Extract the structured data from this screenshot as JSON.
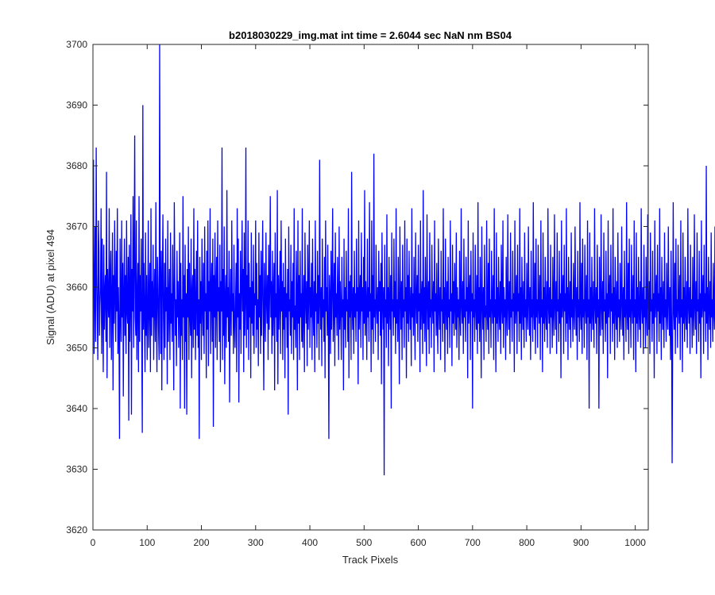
{
  "chart_data": {
    "type": "line",
    "title": "b2018030229_img.mat int time = 2.6044 sec  NaN nm BS04",
    "xlabel": "Track Pixels",
    "ylabel": "Signal (ADU) at pixel 494",
    "xlim": [
      0,
      1024
    ],
    "ylim": [
      3620,
      3700
    ],
    "x_ticks": [
      "0",
      "100",
      "200",
      "300",
      "400",
      "500",
      "600",
      "700",
      "800",
      "900",
      "1000"
    ],
    "y_ticks": [
      "3620",
      "3630",
      "3640",
      "3650",
      "3660",
      "3670",
      "3680",
      "3690",
      "3700"
    ],
    "grid": false,
    "line_color": "#0000ff",
    "series": [
      {
        "x_start": 1,
        "x_step": 1,
        "values": [
          3681,
          3649,
          3658,
          3670,
          3651,
          3683,
          3662,
          3655,
          3648,
          3671,
          3666,
          3652,
          3657,
          3660,
          3673,
          3649,
          3668,
          3656,
          3646,
          3667,
          3653,
          3659,
          3662,
          3651,
          3679,
          3645,
          3663,
          3658,
          3655,
          3673,
          3650,
          3661,
          3666,
          3648,
          3657,
          3669,
          3643,
          3662,
          3654,
          3671,
          3658,
          3651,
          3666,
          3656,
          3673,
          3649,
          3660,
          3653,
          3635,
          3668,
          3657,
          3651,
          3671,
          3655,
          3664,
          3642,
          3659,
          3668,
          3652,
          3662,
          3649,
          3671,
          3656,
          3654,
          3665,
          3638,
          3667,
          3651,
          3658,
          3672,
          3639,
          3663,
          3656,
          3675,
          3650,
          3664,
          3685,
          3655,
          3652,
          3671,
          3648,
          3658,
          3664,
          3646,
          3675,
          3651,
          3662,
          3656,
          3668,
          3650,
          3636,
          3690,
          3653,
          3664,
          3655,
          3646,
          3669,
          3652,
          3662,
          3648,
          3656,
          3671,
          3650,
          3658,
          3664,
          3646,
          3673,
          3652,
          3661,
          3655,
          3667,
          3648,
          3658,
          3663,
          3651,
          3674,
          3656,
          3646,
          3665,
          3660,
          3653,
          3648,
          3700,
          3660,
          3649,
          3666,
          3643,
          3661,
          3672,
          3655,
          3648,
          3664,
          3650,
          3668,
          3656,
          3660,
          3644,
          3671,
          3651,
          3657,
          3663,
          3648,
          3669,
          3654,
          3659,
          3651,
          3667,
          3656,
          3643,
          3674,
          3662,
          3652,
          3658,
          3647,
          3666,
          3655,
          3661,
          3650,
          3657,
          3669,
          3640,
          3664,
          3652,
          3658,
          3648,
          3675,
          3655,
          3662,
          3640,
          3667,
          3651,
          3659,
          3639,
          3663,
          3655,
          3670,
          3648,
          3664,
          3656,
          3652,
          3668,
          3645,
          3659,
          3662,
          3650,
          3673,
          3653,
          3663,
          3648,
          3658,
          3666,
          3652,
          3671,
          3650,
          3658,
          3635,
          3665,
          3654,
          3661,
          3648,
          3668,
          3657,
          3652,
          3664,
          3649,
          3670,
          3656,
          3659,
          3645,
          3666,
          3653,
          3671,
          3647,
          3661,
          3656,
          3673,
          3649,
          3659,
          3664,
          3651,
          3668,
          3637,
          3662,
          3655,
          3669,
          3650,
          3659,
          3665,
          3648,
          3671,
          3656,
          3660,
          3651,
          3667,
          3646,
          3661,
          3656,
          3683,
          3648,
          3663,
          3652,
          3670,
          3644,
          3658,
          3662,
          3650,
          3676,
          3655,
          3660,
          3651,
          3666,
          3641,
          3657,
          3663,
          3652,
          3671,
          3656,
          3659,
          3649,
          3667,
          3654,
          3650,
          3658,
          3664,
          3646,
          3673,
          3655,
          3668,
          3641,
          3659,
          3653,
          3666,
          3649,
          3660,
          3671,
          3656,
          3663,
          3646,
          3669,
          3652,
          3658,
          3683,
          3650,
          3662,
          3653,
          3671,
          3648,
          3664,
          3655,
          3660,
          3645,
          3669,
          3654,
          3661,
          3652,
          3667,
          3649,
          3659,
          3657,
          3671,
          3650,
          3664,
          3653,
          3658,
          3647,
          3669,
          3655,
          3662,
          3649,
          3666,
          3652,
          3660,
          3671,
          3655,
          3643,
          3664,
          3656,
          3651,
          3669,
          3658,
          3654,
          3662,
          3648,
          3667,
          3653,
          3660,
          3675,
          3655,
          3661,
          3649,
          3666,
          3652,
          3658,
          3664,
          3643,
          3669,
          3655,
          3659,
          3651,
          3676,
          3644,
          3662,
          3653,
          3658,
          3666,
          3649,
          3671,
          3656,
          3661,
          3648,
          3664,
          3653,
          3660,
          3645,
          3668,
          3655,
          3659,
          3650,
          3663,
          3639,
          3670,
          3656,
          3658,
          3652,
          3667,
          3649,
          3661,
          3655,
          3664,
          3648,
          3673,
          3653,
          3657,
          3650,
          3666,
          3658,
          3643,
          3671,
          3654,
          3662,
          3648,
          3666,
          3655,
          3659,
          3651,
          3673,
          3650,
          3656,
          3662,
          3646,
          3669,
          3658,
          3654,
          3661,
          3647,
          3667,
          3653,
          3659,
          3671,
          3650,
          3660,
          3655,
          3664,
          3648,
          3668,
          3657,
          3652,
          3661,
          3646,
          3671,
          3656,
          3659,
          3650,
          3666,
          3654,
          3662,
          3648,
          3681,
          3658,
          3653,
          3660,
          3647,
          3668,
          3655,
          3658,
          3651,
          3665,
          3645,
          3671,
          3656,
          3660,
          3652,
          3667,
          3654,
          3635,
          3662,
          3658,
          3649,
          3666,
          3653,
          3660,
          3673,
          3651,
          3657,
          3664,
          3647,
          3669,
          3655,
          3659,
          3652,
          3665,
          3658,
          3648,
          3670,
          3653,
          3661,
          3656,
          3648,
          3665,
          3655,
          3658,
          3643,
          3668,
          3653,
          3660,
          3650,
          3666,
          3656,
          3658,
          3651,
          3673,
          3645,
          3661,
          3655,
          3662,
          3648,
          3679,
          3657,
          3653,
          3660,
          3649,
          3666,
          3655,
          3659,
          3651,
          3668,
          3656,
          3660,
          3644,
          3671,
          3653,
          3658,
          3662,
          3650,
          3669,
          3656,
          3660,
          3648,
          3665,
          3654,
          3676,
          3652,
          3661,
          3657,
          3648,
          3668,
          3655,
          3660,
          3651,
          3674,
          3656,
          3659,
          3646,
          3671,
          3653,
          3662,
          3649,
          3682,
          3655,
          3658,
          3651,
          3667,
          3657,
          3654,
          3660,
          3648,
          3666,
          3656,
          3661,
          3652,
          3664,
          3644,
          3669,
          3658,
          3653,
          3660,
          3629,
          3667,
          3655,
          3658,
          3650,
          3672,
          3654,
          3660,
          3647,
          3665,
          3657,
          3653,
          3662,
          3640,
          3669,
          3656,
          3658,
          3652,
          3668,
          3655,
          3661,
          3649,
          3673,
          3654,
          3658,
          3651,
          3665,
          3656,
          3644,
          3670,
          3659,
          3653,
          3661,
          3648,
          3667,
          3655,
          3658,
          3650,
          3671,
          3656,
          3660,
          3645,
          3668,
          3654,
          3662,
          3651,
          3666,
          3657,
          3653,
          3660,
          3647,
          3673,
          3655,
          3659,
          3652,
          3665,
          3656,
          3648,
          3669,
          3658,
          3654,
          3662,
          3651,
          3667,
          3656,
          3659,
          3646,
          3671,
          3653,
          3658,
          3661,
          3649,
          3676,
          3654,
          3660,
          3651,
          3665,
          3656,
          3647,
          3672,
          3658,
          3653,
          3661,
          3649,
          3669,
          3655,
          3658,
          3650,
          3667,
          3657,
          3654,
          3661,
          3646,
          3671,
          3656,
          3659,
          3652,
          3664,
          3654,
          3649,
          3668,
          3657,
          3653,
          3660,
          3648,
          3666,
          3656,
          3658,
          3651,
          3673,
          3654,
          3660,
          3646,
          3668,
          3657,
          3653,
          3661,
          3649,
          3665,
          3655,
          3658,
          3650,
          3671,
          3656,
          3659,
          3647,
          3667,
          3654,
          3661,
          3652,
          3664,
          3657,
          3653,
          3669,
          3650,
          3660,
          3655,
          3658,
          3648,
          3666,
          3656,
          3652,
          3673,
          3657,
          3654,
          3661,
          3649,
          3668,
          3655,
          3658,
          3651,
          3665,
          3656,
          3660,
          3645,
          3671,
          3654,
          3658,
          3662,
          3648,
          3666,
          3656,
          3659,
          3640,
          3669,
          3655,
          3658,
          3651,
          3667,
          3657,
          3653,
          3662,
          3649,
          3674,
          3654,
          3660,
          3651,
          3665,
          3656,
          3645,
          3670,
          3658,
          3653,
          3660,
          3648,
          3667,
          3655,
          3657,
          3651,
          3671,
          3656,
          3653,
          3664,
          3649,
          3668,
          3655,
          3658,
          3650,
          3666,
          3657,
          3654,
          3662,
          3648,
          3673,
          3655,
          3658,
          3646,
          3669,
          3654,
          3660,
          3651,
          3665,
          3656,
          3653,
          3661,
          3649,
          3667,
          3657,
          3654,
          3671,
          3650,
          3660,
          3655,
          3658,
          3648,
          3665,
          3656,
          3652,
          3672,
          3657,
          3653,
          3661,
          3649,
          3669,
          3655,
          3658,
          3651,
          3666,
          3656,
          3659,
          3646,
          3671,
          3654,
          3657,
          3662,
          3649,
          3667,
          3656,
          3659,
          3651,
          3673,
          3654,
          3660,
          3648,
          3665,
          3657,
          3653,
          3661,
          3650,
          3669,
          3655,
          3658,
          3651,
          3664,
          3656,
          3653,
          3670,
          3658,
          3652,
          3660,
          3648,
          3666,
          3655,
          3658,
          3651,
          3674,
          3656,
          3653,
          3664,
          3649,
          3668,
          3655,
          3658,
          3650,
          3667,
          3657,
          3654,
          3662,
          3648,
          3671,
          3655,
          3658,
          3646,
          3669,
          3654,
          3660,
          3651,
          3665,
          3656,
          3653,
          3661,
          3650,
          3673,
          3657,
          3654,
          3660,
          3649,
          3667,
          3655,
          3658,
          3650,
          3665,
          3656,
          3652,
          3672,
          3657,
          3653,
          3661,
          3649,
          3669,
          3656,
          3658,
          3651,
          3666,
          3654,
          3659,
          3645,
          3671,
          3655,
          3658,
          3662,
          3649,
          3667,
          3656,
          3659,
          3651,
          3673,
          3654,
          3660,
          3648,
          3665,
          3657,
          3653,
          3661,
          3650,
          3669,
          3655,
          3658,
          3651,
          3664,
          3656,
          3653,
          3670,
          3658,
          3652,
          3660,
          3648,
          3666,
          3655,
          3658,
          3651,
          3674,
          3656,
          3653,
          3664,
          3649,
          3668,
          3655,
          3658,
          3650,
          3667,
          3657,
          3654,
          3662,
          3648,
          3671,
          3655,
          3658,
          3640,
          3669,
          3654,
          3660,
          3651,
          3665,
          3656,
          3653,
          3661,
          3650,
          3673,
          3657,
          3654,
          3660,
          3649,
          3667,
          3655,
          3658,
          3640,
          3665,
          3656,
          3652,
          3672,
          3657,
          3653,
          3661,
          3649,
          3669,
          3656,
          3658,
          3651,
          3666,
          3654,
          3659,
          3645,
          3671,
          3655,
          3658,
          3662,
          3649,
          3667,
          3656,
          3659,
          3651,
          3673,
          3654,
          3660,
          3648,
          3665,
          3657,
          3653,
          3661,
          3650,
          3669,
          3655,
          3658,
          3651,
          3664,
          3656,
          3653,
          3670,
          3658,
          3652,
          3660,
          3648,
          3666,
          3655,
          3658,
          3651,
          3674,
          3656,
          3653,
          3664,
          3649,
          3668,
          3655,
          3658,
          3650,
          3667,
          3657,
          3654,
          3662,
          3648,
          3671,
          3655,
          3658,
          3646,
          3669,
          3654,
          3660,
          3651,
          3665,
          3656,
          3653,
          3661,
          3650,
          3673,
          3657,
          3654,
          3660,
          3649,
          3667,
          3655,
          3658,
          3650,
          3665,
          3656,
          3652,
          3672,
          3657,
          3653,
          3661,
          3649,
          3669,
          3656,
          3658,
          3651,
          3666,
          3654,
          3659,
          3645,
          3671,
          3655,
          3658,
          3662,
          3649,
          3667,
          3656,
          3659,
          3651,
          3673,
          3654,
          3660,
          3648,
          3665,
          3657,
          3653,
          3661,
          3650,
          3669,
          3655,
          3658,
          3651,
          3664,
          3656,
          3653,
          3670,
          3658,
          3652,
          3660,
          3648,
          3666,
          3655,
          3631,
          3651,
          3674,
          3656,
          3653,
          3664,
          3649,
          3668,
          3655,
          3658,
          3650,
          3667,
          3657,
          3654,
          3662,
          3648,
          3671,
          3655,
          3658,
          3646,
          3669,
          3654,
          3660,
          3651,
          3665,
          3656,
          3653,
          3661,
          3650,
          3673,
          3657,
          3654,
          3660,
          3649,
          3667,
          3655,
          3658,
          3650,
          3665,
          3656,
          3652,
          3672,
          3657,
          3653,
          3661,
          3649,
          3669,
          3656,
          3658,
          3651,
          3666,
          3654,
          3659,
          3645,
          3671,
          3655,
          3658,
          3662,
          3649,
          3667,
          3656,
          3659,
          3651,
          3680,
          3654,
          3660,
          3648,
          3665,
          3657,
          3653,
          3661,
          3650,
          3669,
          3655,
          3658,
          3651,
          3664,
          3656,
          3653,
          3670,
          3658,
          3652,
          3660,
          3648,
          3666,
          3655,
          3658,
          3651,
          3674,
          3656,
          3653,
          3636,
          3649,
          3668,
          3655,
          3658,
          3650,
          3667,
          3657,
          3654,
          3662
        ]
      }
    ]
  }
}
